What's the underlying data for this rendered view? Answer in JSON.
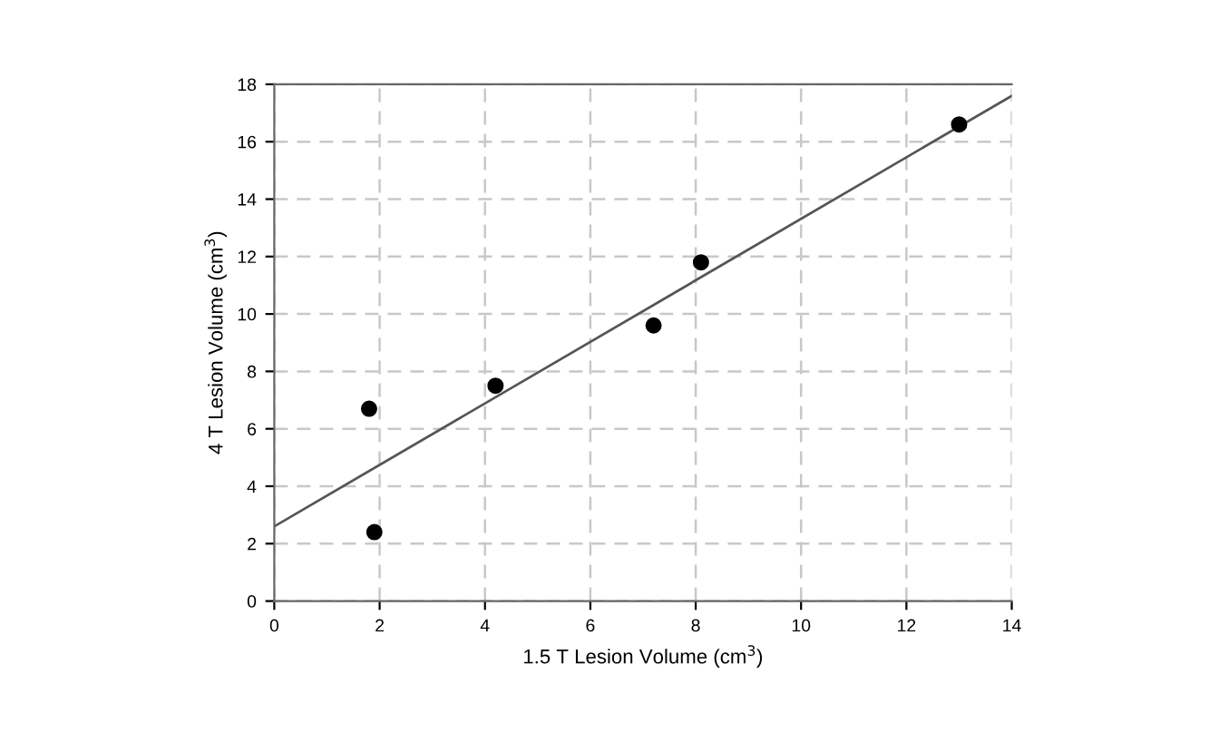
{
  "chart_data": {
    "type": "scatter",
    "xlabel": "1.5 T Lesion Volume (cm$^{3}$)",
    "ylabel": "4 T Lesion Volume (cm$^{3}$)",
    "series": [
      {
        "color": "#000000",
        "marker": "circle",
        "x": [
          1.8,
          1.9,
          4.2,
          7.2,
          8.1,
          13.0
        ],
        "values": [
          6.7,
          2.4,
          7.5,
          9.6,
          11.8,
          16.6
        ]
      },
      {
        "type": "line",
        "color": "#555555",
        "marker": "none",
        "line_style": "solid",
        "x": [
          0,
          14
        ],
        "values": [
          2.6,
          17.6
        ]
      }
    ],
    "xlim": [
      0,
      14
    ],
    "xticks": [
      0,
      2,
      4,
      6,
      8,
      10,
      12,
      14
    ],
    "ylim": [
      0,
      18
    ],
    "yticks": [
      0,
      2,
      4,
      6,
      8,
      10,
      12,
      14,
      16,
      18
    ],
    "grid": true
  }
}
